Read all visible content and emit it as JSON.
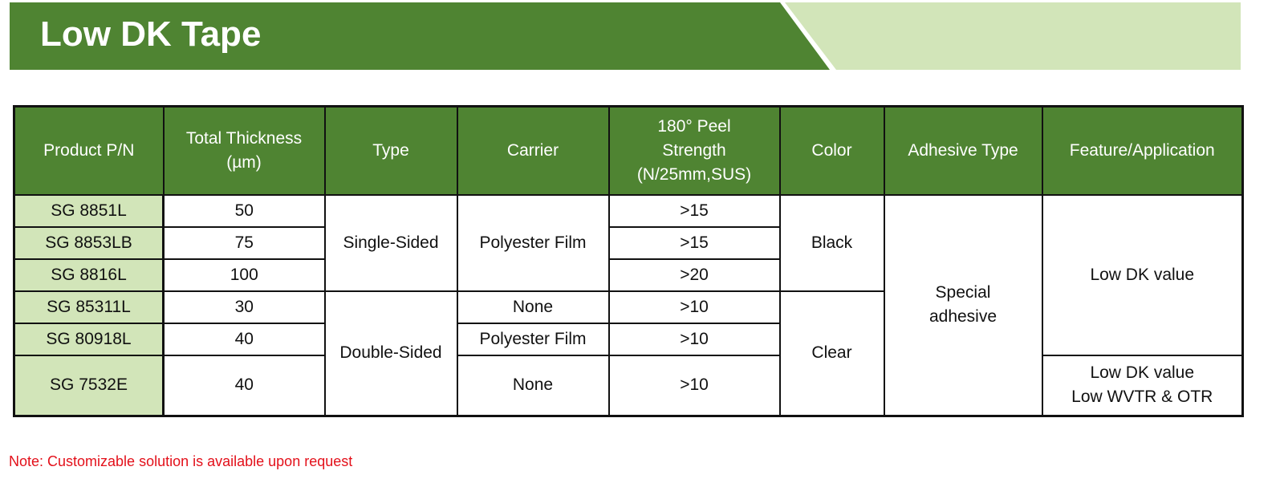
{
  "title": "Low DK Tape",
  "colors": {
    "brand_green": "#4f8432",
    "light_green": "#d2e5b9",
    "note_red": "#e3101a"
  },
  "table": {
    "headers": [
      "Product P/N",
      "Total Thickness (µm)",
      "Type",
      "Carrier",
      "180° Peel Strength (N/25mm,SUS)",
      "Color",
      "Adhesive Type",
      "Feature/Application"
    ],
    "header_lines": {
      "thickness": [
        "Total Thickness",
        "(µm)"
      ],
      "peel": [
        "180° Peel",
        "Strength",
        "(N/25mm,SUS)"
      ]
    },
    "rows": [
      {
        "pn": "SG 8851L",
        "thickness": "50",
        "peel": ">15"
      },
      {
        "pn": "SG 8853LB",
        "thickness": "75",
        "peel": ">15"
      },
      {
        "pn": "SG 8816L",
        "thickness": "100",
        "peel": ">20"
      },
      {
        "pn": "SG 85311L",
        "thickness": "30",
        "peel": ">10"
      },
      {
        "pn": "SG 80918L",
        "thickness": "40",
        "peel": ">10"
      },
      {
        "pn": "SG 7532E",
        "thickness": "40",
        "peel": ">10"
      }
    ],
    "type": {
      "single": "Single-Sided",
      "double": "Double-Sided"
    },
    "carrier": {
      "film_1_3": "Polyester Film",
      "none_4": "None",
      "film_5": "Polyester Film",
      "none_6": "None"
    },
    "color": {
      "black": "Black",
      "clear": "Clear"
    },
    "adhesive": [
      "Special",
      "adhesive"
    ],
    "feature": {
      "main": "Low DK value",
      "last": [
        "Low DK value",
        "Low WVTR & OTR"
      ]
    }
  },
  "note": "Note: Customizable solution is available upon request"
}
